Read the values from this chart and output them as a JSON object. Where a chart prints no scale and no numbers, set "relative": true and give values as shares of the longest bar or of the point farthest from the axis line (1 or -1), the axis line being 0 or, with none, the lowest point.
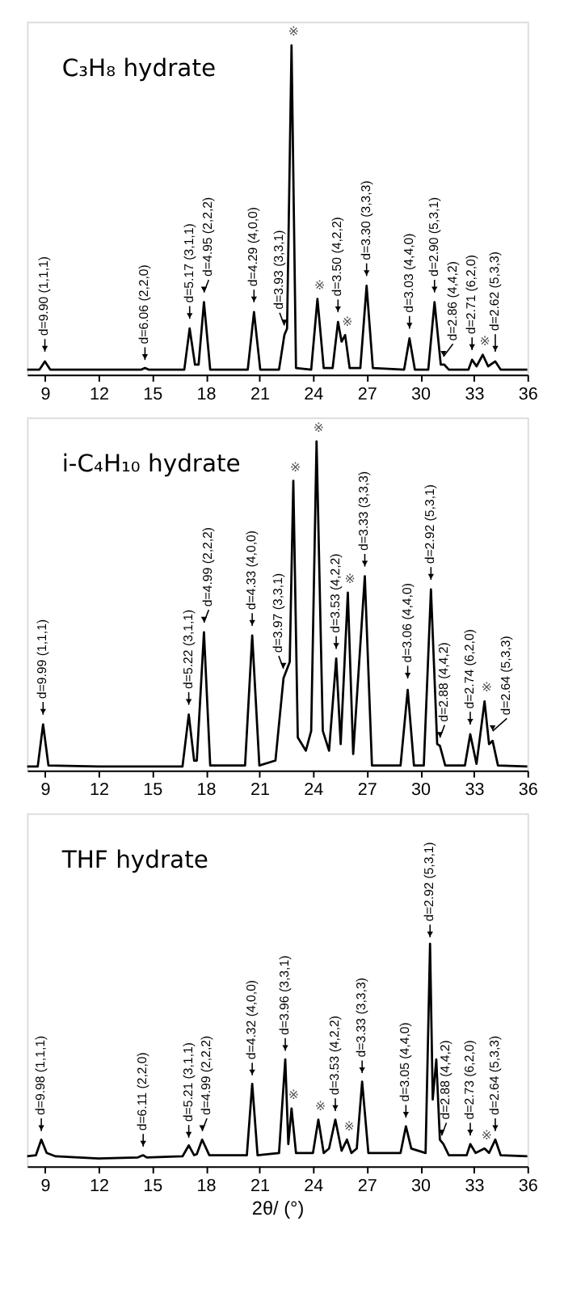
{
  "chart_data": [
    {
      "type": "line",
      "title": "C₃H₈ hydrate",
      "relative": true,
      "xlim": [
        8,
        36
      ],
      "xticks": [
        9,
        12,
        15,
        18,
        21,
        24,
        27,
        30,
        33,
        36
      ],
      "x": [
        8.0,
        8.7,
        9.0,
        9.3,
        12,
        14.4,
        14.6,
        14.8,
        16.8,
        17.1,
        17.4,
        17.6,
        17.9,
        18.25,
        20.35,
        20.7,
        21.05,
        22.1,
        22.4,
        22.55,
        22.8,
        23.05,
        23.9,
        24.25,
        24.6,
        25.1,
        25.4,
        25.6,
        25.8,
        26.05,
        26.65,
        27.0,
        27.35,
        29.1,
        29.4,
        29.7,
        30.45,
        30.8,
        31.15,
        31.35,
        31.6,
        32.7,
        32.9,
        33.15,
        33.5,
        33.8,
        34.2,
        34.5,
        36
      ],
      "series": [
        {
          "color": "#000000",
          "values": [
            0.015,
            0.015,
            0.04,
            0.015,
            0.015,
            0.015,
            0.02,
            0.015,
            0.015,
            0.14,
            0.03,
            0.03,
            0.22,
            0.015,
            0.015,
            0.19,
            0.015,
            0.015,
            0.12,
            0.14,
            1.0,
            0.02,
            0.015,
            0.23,
            0.02,
            0.02,
            0.16,
            0.1,
            0.12,
            0.02,
            0.02,
            0.27,
            0.02,
            0.015,
            0.11,
            0.015,
            0.015,
            0.22,
            0.03,
            0.03,
            0.015,
            0.015,
            0.045,
            0.025,
            0.06,
            0.025,
            0.04,
            0.015,
            0.015
          ]
        }
      ],
      "annotations": [
        {
          "text": "d=9.90 (1,1,1)",
          "x": 9.0,
          "y": 0.05
        },
        {
          "text": "d=6.06 (2,2,0)",
          "x": 14.6,
          "y": 0.025
        },
        {
          "text": "d=5.17 (3,1,1)",
          "x": 17.1,
          "y": 0.15
        },
        {
          "text": "d=4.95 (2,2,2)",
          "x": 17.9,
          "y": 0.23
        },
        {
          "text": "d=4.29 (4,0,0)",
          "x": 20.7,
          "y": 0.2
        },
        {
          "text": "d=3.93 (3,3,1)",
          "x": 22.4,
          "y": 0.13
        },
        {
          "text": "d=3.50 (4,2,2)",
          "x": 25.4,
          "y": 0.17
        },
        {
          "text": "d=3.30 (3,3,3)",
          "x": 27.0,
          "y": 0.28
        },
        {
          "text": "d=3.03 (4,4,0)",
          "x": 29.4,
          "y": 0.12
        },
        {
          "text": "d=2.90 (5,3,1)",
          "x": 30.8,
          "y": 0.23
        },
        {
          "text": "d=2.86 (4,4,2)",
          "x": 31.3,
          "y": 0.035
        },
        {
          "text": "d=2.71 (6,2,0)",
          "x": 32.9,
          "y": 0.055
        },
        {
          "text": "d=2.62 (5,3,3)",
          "x": 34.2,
          "y": 0.05
        },
        {
          "text": "※",
          "x": 22.8,
          "y": 1.0
        },
        {
          "text": "※",
          "x": 24.25,
          "y": 0.23
        },
        {
          "text": "※",
          "x": 25.8,
          "y": 0.12
        },
        {
          "text": "※",
          "x": 33.5,
          "y": 0.06
        }
      ]
    },
    {
      "type": "line",
      "title": "i-C₄H₁₀ hydrate",
      "relative": true,
      "xlim": [
        8,
        36
      ],
      "xticks": [
        9,
        12,
        15,
        18,
        21,
        24,
        27,
        30,
        33,
        36
      ],
      "x": [
        8.0,
        8.6,
        8.9,
        9.2,
        12,
        16.7,
        17.05,
        17.35,
        17.5,
        17.9,
        18.25,
        20.2,
        20.6,
        21.0,
        21.9,
        22.35,
        22.7,
        22.9,
        23.15,
        23.6,
        23.9,
        24.2,
        24.55,
        24.9,
        25.3,
        25.55,
        25.95,
        26.25,
        26.9,
        27.3,
        28.9,
        29.3,
        29.65,
        30.2,
        30.6,
        30.95,
        31.1,
        31.4,
        32.5,
        32.8,
        33.15,
        33.6,
        33.85,
        34.05,
        34.35,
        36
      ],
      "series": [
        {
          "color": "#000000",
          "values": [
            0.012,
            0.012,
            0.14,
            0.015,
            0.012,
            0.012,
            0.17,
            0.03,
            0.03,
            0.42,
            0.015,
            0.015,
            0.41,
            0.015,
            0.03,
            0.28,
            0.33,
            0.88,
            0.1,
            0.06,
            0.12,
            1.0,
            0.12,
            0.06,
            0.34,
            0.08,
            0.54,
            0.05,
            0.59,
            0.015,
            0.015,
            0.245,
            0.015,
            0.015,
            0.55,
            0.08,
            0.075,
            0.015,
            0.015,
            0.11,
            0.02,
            0.21,
            0.08,
            0.09,
            0.015,
            0.012
          ]
        }
      ],
      "annotations": [
        {
          "text": "d=9.99 (1,1,1)",
          "x": 8.9,
          "y": 0.15
        },
        {
          "text": "d=5.22 (3,1,1)",
          "x": 17.05,
          "y": 0.18
        },
        {
          "text": "d=4.99 (2,2,2)",
          "x": 17.9,
          "y": 0.43
        },
        {
          "text": "d=4.33 (4,0,0)",
          "x": 20.6,
          "y": 0.42
        },
        {
          "text": "d=3.97 (3,3,1)",
          "x": 22.35,
          "y": 0.29
        },
        {
          "text": "d=3.53 (4,2,2)",
          "x": 25.3,
          "y": 0.35
        },
        {
          "text": "d=3.33 (3,3,3)",
          "x": 26.9,
          "y": 0.6
        },
        {
          "text": "d=3.06 (4,4,0)",
          "x": 29.3,
          "y": 0.26
        },
        {
          "text": "d=2.92 (5,3,1)",
          "x": 30.6,
          "y": 0.56
        },
        {
          "text": "d=2.88 (4,4,2)",
          "x": 31.1,
          "y": 0.08
        },
        {
          "text": "d=2.74 (6,2,0)",
          "x": 32.8,
          "y": 0.12
        },
        {
          "text": "d=2.64 (5,3,3)",
          "x": 34.05,
          "y": 0.1
        },
        {
          "text": "※",
          "x": 22.9,
          "y": 0.88
        },
        {
          "text": "※",
          "x": 24.2,
          "y": 1.0
        },
        {
          "text": "※",
          "x": 25.95,
          "y": 0.54
        },
        {
          "text": "※",
          "x": 33.6,
          "y": 0.21
        }
      ]
    },
    {
      "type": "line",
      "title": "THF hydrate",
      "xlabel": "2θ/ (°)",
      "relative": true,
      "xlim": [
        8,
        36
      ],
      "xticks": [
        9,
        12,
        15,
        18,
        21,
        24,
        27,
        30,
        33,
        36
      ],
      "x": [
        8.0,
        8.5,
        8.8,
        9.1,
        9.6,
        12,
        14.2,
        14.5,
        14.7,
        16.7,
        17.05,
        17.35,
        17.5,
        17.8,
        18.2,
        20.3,
        20.6,
        20.9,
        22.1,
        22.45,
        22.62,
        22.8,
        23.05,
        24.0,
        24.3,
        24.6,
        24.9,
        25.25,
        25.6,
        25.9,
        26.15,
        26.45,
        26.75,
        27.1,
        28.9,
        29.2,
        29.5,
        30.3,
        30.55,
        30.7,
        30.9,
        31.1,
        31.3,
        31.6,
        32.6,
        32.8,
        33.1,
        33.6,
        33.85,
        34.2,
        34.5,
        36
      ],
      "series": [
        {
          "color": "#000000",
          "values": [
            0.045,
            0.05,
            0.12,
            0.06,
            0.045,
            0.035,
            0.04,
            0.05,
            0.04,
            0.045,
            0.094,
            0.05,
            0.055,
            0.12,
            0.05,
            0.05,
            0.37,
            0.05,
            0.06,
            0.48,
            0.1,
            0.26,
            0.06,
            0.06,
            0.21,
            0.06,
            0.08,
            0.21,
            0.07,
            0.12,
            0.06,
            0.08,
            0.38,
            0.06,
            0.06,
            0.18,
            0.08,
            0.06,
            1.0,
            0.3,
            0.48,
            0.12,
            0.1,
            0.05,
            0.05,
            0.1,
            0.06,
            0.08,
            0.06,
            0.12,
            0.05,
            0.045
          ]
        }
      ],
      "annotations": [
        {
          "text": "d=9.98 (1,1,1)",
          "x": 8.8,
          "y": 0.13
        },
        {
          "text": "d=6.11 (2,2,0)",
          "x": 14.5,
          "y": 0.06
        },
        {
          "text": "d=5.21 (3,1,1)",
          "x": 17.05,
          "y": 0.1
        },
        {
          "text": "d=4.99 (2,2,2)",
          "x": 17.8,
          "y": 0.13
        },
        {
          "text": "d=4.32 (4,0,0)",
          "x": 20.6,
          "y": 0.38
        },
        {
          "text": "d=3.96 (3,3,1)",
          "x": 22.45,
          "y": 0.49
        },
        {
          "text": "d=3.53 (4,2,2)",
          "x": 25.25,
          "y": 0.22
        },
        {
          "text": "d=3.33 (3,3,3)",
          "x": 26.75,
          "y": 0.39
        },
        {
          "text": "d=3.05 (4,4,0)",
          "x": 29.2,
          "y": 0.19
        },
        {
          "text": "d=2.92 (5,3,1)",
          "x": 30.55,
          "y": 1.0
        },
        {
          "text": "d=2.88 (4,4,2)",
          "x": 31.2,
          "y": 0.11
        },
        {
          "text": "d=2.73 (6,2,0)",
          "x": 32.8,
          "y": 0.11
        },
        {
          "text": "d=2.64 (5,3,3)",
          "x": 34.2,
          "y": 0.13
        },
        {
          "text": "※",
          "x": 22.8,
          "y": 0.26
        },
        {
          "text": "※",
          "x": 24.3,
          "y": 0.21
        },
        {
          "text": "※",
          "x": 25.9,
          "y": 0.12
        },
        {
          "text": "※",
          "x": 33.6,
          "y": 0.08
        }
      ]
    }
  ]
}
